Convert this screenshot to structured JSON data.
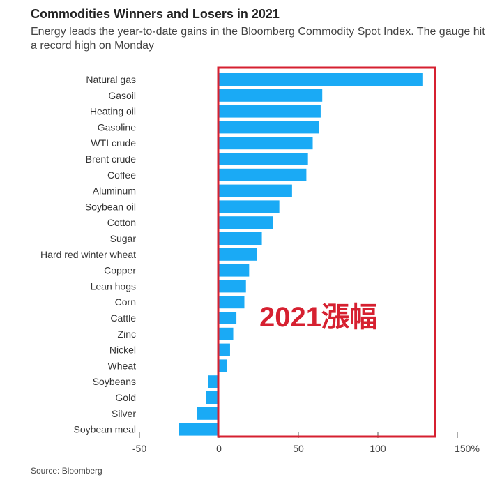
{
  "header": {
    "title": "Commodities Winners and Losers in 2021",
    "subtitle": "Energy leads the year-to-date gains in the Bloomberg Commodity Spot Index. The gauge hit a record high on Monday"
  },
  "footer": {
    "source": "Source: Bloomberg"
  },
  "annotation": {
    "text": "2021漲幅",
    "color": "#d62030"
  },
  "chart_data": {
    "type": "bar",
    "orientation": "horizontal",
    "title": "Commodities Winners and Losers in 2021",
    "categories": [
      "Natural gas",
      "Gasoil",
      "Heating oil",
      "Gasoline",
      "WTI crude",
      "Brent crude",
      "Coffee",
      "Aluminum",
      "Soybean oil",
      "Cotton",
      "Sugar",
      "Hard red winter wheat",
      "Copper",
      "Lean hogs",
      "Corn",
      "Cattle",
      "Zinc",
      "Nickel",
      "Wheat",
      "Soybeans",
      "Gold",
      "Silver",
      "Soybean meal"
    ],
    "values": [
      128,
      65,
      64,
      63,
      59,
      56,
      55,
      46,
      38,
      34,
      27,
      24,
      19,
      17,
      16,
      11,
      9,
      7,
      5,
      -7,
      -8,
      -14,
      -25
    ],
    "xlim": [
      -50,
      150
    ],
    "ticks": [
      -50,
      0,
      50,
      100,
      150
    ],
    "tick_labels": [
      "-50",
      "0",
      "50",
      "100",
      "150%"
    ],
    "bar_color": "#1aaaf5",
    "grid": false,
    "legend": "none"
  }
}
